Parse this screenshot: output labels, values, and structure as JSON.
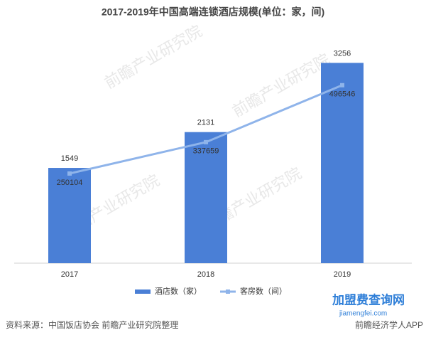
{
  "chart_data": {
    "type": "bar-line",
    "title": "2017-2019年中国高端连锁酒店规模(单位：家，间)",
    "categories": [
      "2017",
      "2018",
      "2019"
    ],
    "series": [
      {
        "name": "酒店数（家）",
        "type": "bar",
        "color": "#4a7fd6",
        "values": [
          1549,
          2131,
          3256
        ]
      },
      {
        "name": "客房数（间）",
        "type": "line",
        "axis": "y2",
        "color": "#8fb4ea",
        "values": [
          250104,
          337659,
          496546
        ]
      }
    ],
    "ylim": [
      0,
      3700
    ],
    "y2lim": [
      0,
      635000
    ],
    "legend": "bottom",
    "source": "资料来源：中国饭店协会 前瞻产业研究院整理",
    "watermark": "前瞻产业研究院",
    "footer_logo": "加盟费查询网",
    "footer_url": "jiamengfei.com",
    "footer_app": "前瞻经济学人APP"
  }
}
